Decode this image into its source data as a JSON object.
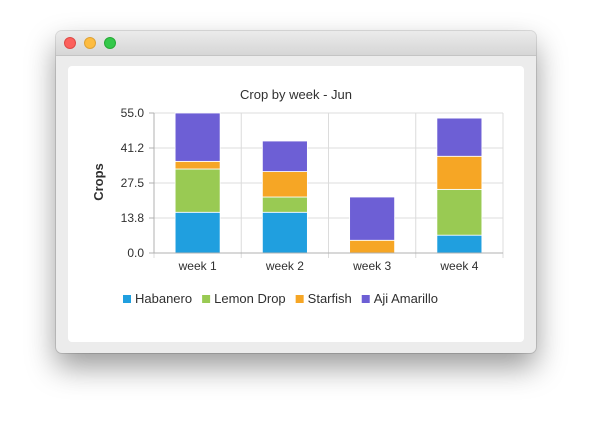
{
  "window": {
    "controls": [
      "close",
      "minimize",
      "maximize"
    ]
  },
  "chart_data": {
    "type": "bar",
    "stacked": true,
    "title": "Crop by week - Jun",
    "xlabel": "",
    "ylabel": "Crops",
    "categories": [
      "week 1",
      "week 2",
      "week 3",
      "week 4"
    ],
    "ylim": [
      0,
      55
    ],
    "yticks": [
      "0.0",
      "13.8",
      "27.5",
      "41.2",
      "55.0"
    ],
    "grid": true,
    "legend": "bottom",
    "series": [
      {
        "name": "Habanero",
        "color": "#209fdf",
        "values": [
          16,
          16,
          0,
          7
        ]
      },
      {
        "name": "Lemon Drop",
        "color": "#99ca53",
        "values": [
          17,
          6,
          0,
          18
        ]
      },
      {
        "name": "Starfish",
        "color": "#f6a625",
        "values": [
          3,
          10,
          5,
          13
        ]
      },
      {
        "name": "Aji Amarillo",
        "color": "#6d5fd5",
        "values": [
          19,
          12,
          17,
          15
        ]
      }
    ]
  }
}
